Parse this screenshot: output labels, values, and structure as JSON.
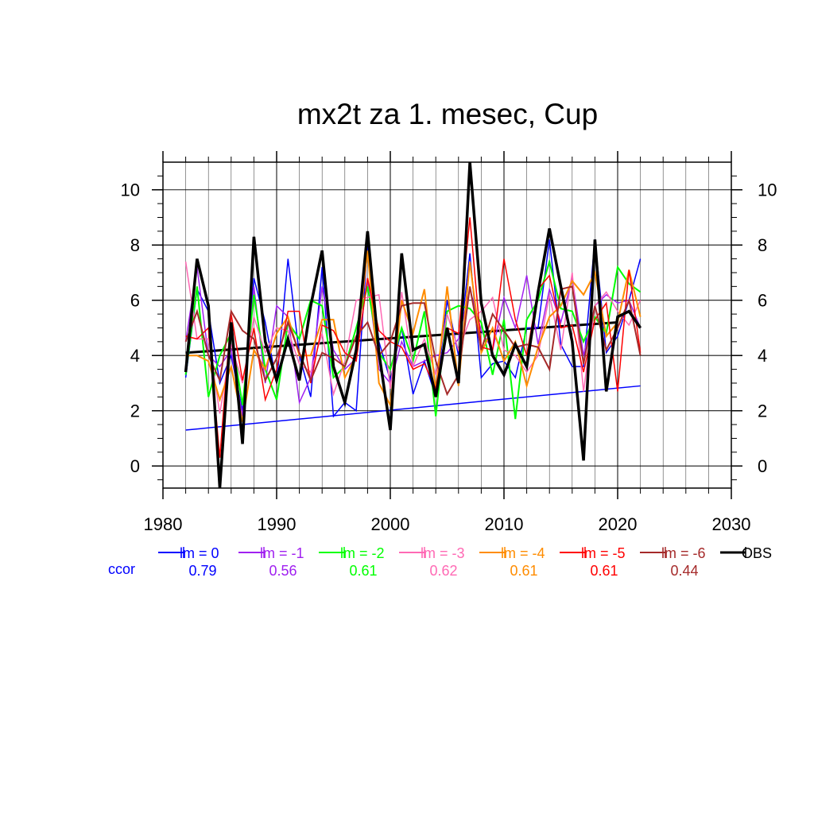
{
  "chart_data": {
    "type": "line",
    "title": "mx2t za 1. mesec, Cup",
    "xlabel": "",
    "ylabel": "",
    "xlim": [
      1980,
      2030
    ],
    "ylim": [
      -0.8,
      11
    ],
    "x_ticks": [
      1980,
      1990,
      2000,
      2010,
      2020,
      2030
    ],
    "y_ticks": [
      0,
      2,
      4,
      6,
      8,
      10
    ],
    "grid": true,
    "legend_position": "bottom",
    "ccor_label": "ccor",
    "years": [
      1982,
      1983,
      1984,
      1985,
      1986,
      1987,
      1988,
      1989,
      1990,
      1991,
      1992,
      1993,
      1994,
      1995,
      1996,
      1997,
      1998,
      1999,
      2000,
      2001,
      2002,
      2003,
      2004,
      2005,
      2006,
      2007,
      2008,
      2009,
      2010,
      2011,
      2012,
      2013,
      2014,
      2015,
      2016,
      2017,
      2018,
      2019,
      2020,
      2021,
      2022
    ],
    "series": [
      {
        "name": "lm = 0",
        "color": "#0000ff",
        "width": 1.5,
        "ccor": "0.79",
        "values": [
          3.2,
          6.4,
          5.6,
          3.0,
          4.0,
          2.0,
          6.8,
          5.2,
          3.0,
          7.5,
          4.0,
          2.5,
          7.2,
          1.8,
          2.3,
          2.0,
          8.0,
          4.5,
          3.1,
          5.0,
          2.6,
          3.8,
          2.5,
          6.0,
          4.0,
          7.7,
          3.2,
          3.7,
          3.8,
          3.2,
          5.0,
          5.0,
          8.2,
          4.4,
          3.6,
          3.6,
          8.2,
          4.1,
          4.7,
          6.0,
          7.5
        ],
        "trend": [
          [
            1982,
            1.3
          ],
          [
            2022,
            2.9
          ]
        ]
      },
      {
        "name": "lm = -1",
        "color": "#a020f0",
        "width": 1.5,
        "ccor": "0.56",
        "values": [
          4.5,
          7.2,
          4.0,
          3.6,
          4.2,
          1.8,
          6.5,
          3.0,
          5.8,
          5.4,
          2.3,
          3.2,
          6.5,
          4.2,
          3.5,
          3.9,
          6.8,
          3.5,
          3.0,
          4.5,
          3.6,
          3.8,
          4.0,
          4.1,
          4.6,
          6.4,
          4.9,
          4.2,
          6.1,
          5.0,
          6.9,
          4.4,
          6.4,
          5.2,
          6.8,
          4.0,
          5.8,
          6.2,
          5.9,
          6.0,
          5.0
        ]
      },
      {
        "name": "lm = -2",
        "color": "#00ff00",
        "width": 2,
        "ccor": "0.61",
        "values": [
          3.3,
          6.5,
          2.5,
          4.0,
          4.8,
          2.2,
          6.2,
          3.5,
          2.4,
          5.2,
          4.6,
          6.0,
          5.8,
          3.2,
          3.6,
          5.0,
          6.5,
          4.1,
          3.5,
          5.0,
          3.8,
          5.6,
          1.8,
          5.6,
          5.8,
          5.7,
          5.2,
          3.3,
          5.3,
          1.7,
          5.3,
          6.0,
          7.4,
          5.7,
          5.6,
          4.5,
          5.4,
          4.8,
          7.2,
          6.6,
          6.3
        ]
      },
      {
        "name": "lm = -3",
        "color": "#ff69b4",
        "width": 1.5,
        "ccor": "0.62",
        "values": [
          7.4,
          4.6,
          4.6,
          1.9,
          4.4,
          3.0,
          5.4,
          4.1,
          5.0,
          4.9,
          3.7,
          3.4,
          4.8,
          2.6,
          3.8,
          6.0,
          6.1,
          6.2,
          2.8,
          6.3,
          3.6,
          4.6,
          3.3,
          5.5,
          4.2,
          5.3,
          5.6,
          6.1,
          4.2,
          4.0,
          3.4,
          4.0,
          6.2,
          4.2,
          7.0,
          2.7,
          5.8,
          6.3,
          5.6,
          5.1,
          6.0
        ]
      },
      {
        "name": "lm = -4",
        "color": "#ff8c00",
        "width": 2,
        "ccor": "0.61",
        "values": [
          4.0,
          4.0,
          3.8,
          2.4,
          3.6,
          1.6,
          4.2,
          3.5,
          4.8,
          5.4,
          4.0,
          4.0,
          5.3,
          5.3,
          3.2,
          4.0,
          7.8,
          3.0,
          2.2,
          6.0,
          4.8,
          6.4,
          2.7,
          6.5,
          2.9,
          7.4,
          4.1,
          5.0,
          3.8,
          4.5,
          2.9,
          4.3,
          5.4,
          5.8,
          6.7,
          6.2,
          7.0,
          4.7,
          5.2,
          7.1,
          5.4
        ]
      },
      {
        "name": "lm = -5",
        "color": "#ff0000",
        "width": 1.5,
        "ccor": "0.61",
        "values": [
          4.7,
          4.6,
          5.0,
          0.3,
          5.5,
          3.1,
          5.0,
          2.4,
          3.5,
          5.6,
          5.6,
          3.0,
          5.1,
          4.9,
          4.1,
          3.8,
          6.8,
          4.9,
          4.5,
          4.3,
          3.5,
          3.7,
          2.8,
          5.0,
          4.8,
          9.0,
          4.3,
          4.2,
          7.5,
          5.3,
          4.0,
          6.4,
          6.9,
          5.0,
          5.1,
          3.4,
          5.3,
          5.9,
          2.7,
          7.1,
          4.1
        ]
      },
      {
        "name": "lm = -6",
        "color": "#a52a2a",
        "width": 2,
        "ccor": "0.44",
        "values": [
          4.5,
          5.6,
          4.0,
          3.1,
          5.6,
          4.9,
          4.6,
          3.1,
          3.9,
          5.2,
          4.1,
          3.1,
          4.1,
          3.9,
          3.6,
          4.7,
          5.2,
          4.0,
          4.5,
          5.8,
          5.9,
          5.9,
          3.8,
          2.6,
          3.3,
          6.5,
          4.2,
          5.5,
          4.9,
          4.3,
          4.4,
          4.3,
          3.5,
          6.4,
          6.5,
          3.7,
          5.8,
          4.2,
          5.0,
          6.0,
          4.0
        ]
      },
      {
        "name": "OBS",
        "color": "#000000",
        "width": 3.5,
        "ccor": "",
        "values": [
          3.4,
          7.5,
          5.8,
          -0.8,
          5.2,
          0.8,
          8.3,
          4.5,
          3.1,
          4.6,
          3.1,
          5.8,
          7.8,
          3.6,
          2.3,
          4.2,
          8.5,
          4.1,
          1.3,
          7.7,
          4.2,
          4.4,
          2.5,
          5.0,
          3.0,
          11.0,
          5.9,
          4.0,
          3.3,
          4.4,
          3.6,
          6.3,
          8.6,
          6.5,
          4.5,
          0.2,
          8.2,
          2.7,
          5.4,
          5.6,
          5.0
        ],
        "trend": [
          [
            1982,
            4.1
          ],
          [
            2020,
            5.2
          ]
        ]
      }
    ]
  }
}
